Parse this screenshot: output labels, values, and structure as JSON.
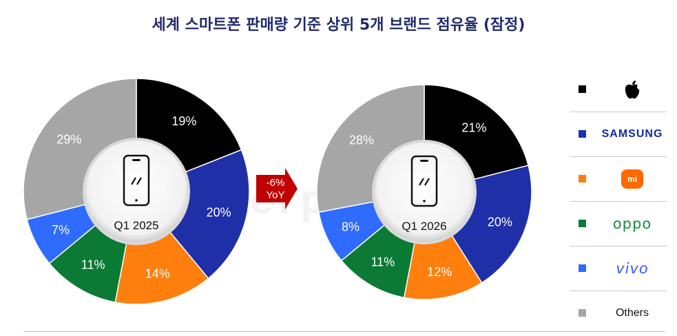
{
  "title": "세계 스마트폰 판매량 기준 상위 5개 브랜드 점유율 (잠정)",
  "watermark": "Counterpoint",
  "arrow": {
    "line1": "-6%",
    "line2": "YoY",
    "color": "#c00000"
  },
  "legend": [
    {
      "key": "apple",
      "color": "#000000",
      "icon": "apple-logo"
    },
    {
      "key": "samsung",
      "color": "#1f2fa8",
      "text": "SAMSUNG"
    },
    {
      "key": "xiaomi",
      "color": "#ff7f0e",
      "text": "mi",
      "icon": "xiaomi-logo"
    },
    {
      "key": "oppo",
      "color": "#0a7a34",
      "text": "oppo"
    },
    {
      "key": "vivo",
      "color": "#2f6bff",
      "text": "vivo"
    },
    {
      "key": "others",
      "color": "#a6a6a6",
      "text": "Others"
    }
  ],
  "chart_data": [
    {
      "type": "pie",
      "center_label": "Q1 2025",
      "categories": [
        "Apple",
        "Samsung",
        "Xiaomi",
        "OPPO",
        "vivo",
        "Others"
      ],
      "values": [
        19,
        20,
        14,
        11,
        7,
        29
      ],
      "labels": [
        "19%",
        "20%",
        "14%",
        "11%",
        "7%",
        "29%"
      ],
      "colors": [
        "#000000",
        "#1f2fa8",
        "#ff7f0e",
        "#0a7a34",
        "#2f6bff",
        "#a6a6a6"
      ]
    },
    {
      "type": "pie",
      "center_label": "Q1 2026",
      "categories": [
        "Apple",
        "Samsung",
        "Xiaomi",
        "OPPO",
        "vivo",
        "Others"
      ],
      "values": [
        21,
        20,
        12,
        11,
        8,
        28
      ],
      "labels": [
        "21%",
        "20%",
        "12%",
        "11%",
        "8%",
        "28%"
      ],
      "colors": [
        "#000000",
        "#1f2fa8",
        "#ff7f0e",
        "#0a7a34",
        "#2f6bff",
        "#a6a6a6"
      ]
    }
  ]
}
